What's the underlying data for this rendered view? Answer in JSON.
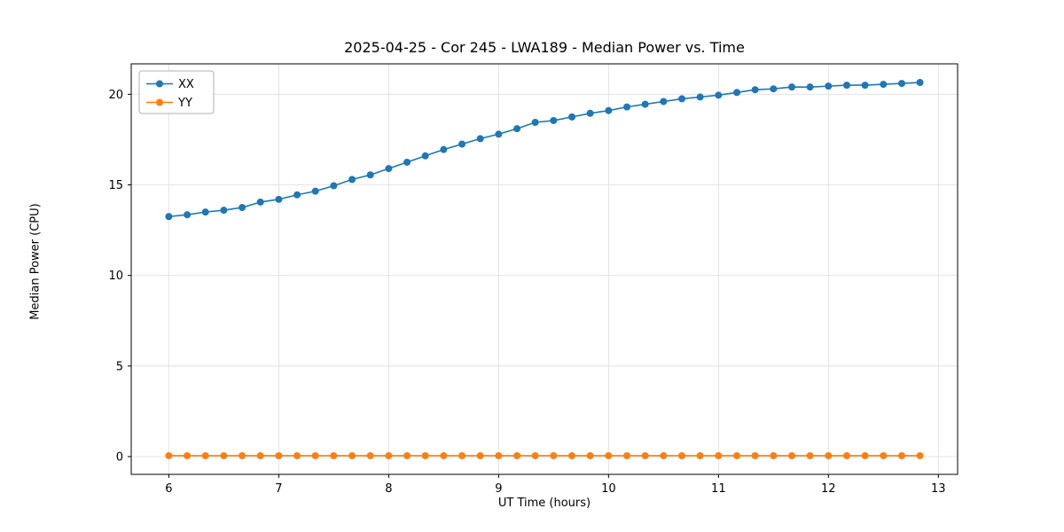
{
  "chart_data": {
    "type": "line",
    "title": "2025-04-25 - Cor 245 - LWA189 - Median Power vs. Time",
    "xlabel": "UT Time (hours)",
    "ylabel": "Median Power (CPU)",
    "grid": true,
    "legend_position": "upper left",
    "xlim": [
      5.658,
      13.175
    ],
    "ylim": [
      -0.98,
      21.68
    ],
    "xticks": [
      6,
      7,
      8,
      9,
      10,
      11,
      12,
      13
    ],
    "yticks": [
      0,
      5,
      10,
      15,
      20
    ],
    "x": [
      6.0,
      6.167,
      6.333,
      6.5,
      6.667,
      6.833,
      7.0,
      7.167,
      7.333,
      7.5,
      7.667,
      7.833,
      8.0,
      8.167,
      8.333,
      8.5,
      8.667,
      8.833,
      9.0,
      9.167,
      9.333,
      9.5,
      9.667,
      9.833,
      10.0,
      10.167,
      10.333,
      10.5,
      10.667,
      10.833,
      11.0,
      11.167,
      11.333,
      11.5,
      11.667,
      11.833,
      12.0,
      12.167,
      12.333,
      12.5,
      12.667,
      12.833
    ],
    "series": [
      {
        "name": "XX",
        "color": "#1f77b4",
        "values": [
          13.25,
          13.35,
          13.5,
          13.6,
          13.75,
          14.05,
          14.2,
          14.45,
          14.65,
          14.95,
          15.3,
          15.55,
          15.9,
          16.25,
          16.6,
          16.95,
          17.25,
          17.55,
          17.8,
          18.1,
          18.45,
          18.55,
          18.75,
          18.95,
          19.1,
          19.3,
          19.45,
          19.6,
          19.75,
          19.85,
          19.95,
          20.1,
          20.25,
          20.3,
          20.4,
          20.4,
          20.45,
          20.5,
          20.5,
          20.55,
          20.6,
          20.65
        ]
      },
      {
        "name": "YY",
        "color": "#ff7f0e",
        "values": [
          0.05,
          0.05,
          0.05,
          0.05,
          0.05,
          0.05,
          0.05,
          0.05,
          0.05,
          0.05,
          0.05,
          0.05,
          0.05,
          0.05,
          0.05,
          0.05,
          0.05,
          0.05,
          0.05,
          0.05,
          0.05,
          0.05,
          0.05,
          0.05,
          0.05,
          0.05,
          0.05,
          0.05,
          0.05,
          0.05,
          0.05,
          0.05,
          0.05,
          0.05,
          0.05,
          0.05,
          0.05,
          0.05,
          0.05,
          0.05,
          0.05,
          0.05
        ]
      }
    ]
  }
}
